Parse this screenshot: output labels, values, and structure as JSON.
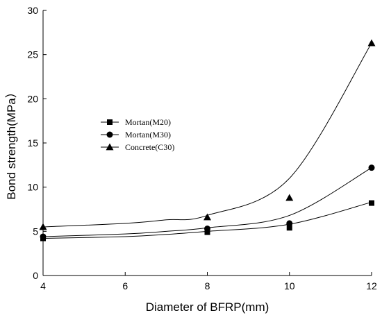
{
  "chart_data": {
    "type": "scatter",
    "xlabel": "Diameter of BFRP(mm)",
    "ylabel": "Bond strength(MPa）",
    "xlim": [
      4,
      12
    ],
    "ylim": [
      0,
      30
    ],
    "xticks": [
      4,
      6,
      8,
      10,
      12
    ],
    "yticks": [
      0,
      5,
      10,
      15,
      20,
      25,
      30
    ],
    "grid": false,
    "legend_position": "left-middle",
    "series": [
      {
        "name": "Mortan(M20)",
        "marker": "square",
        "x": [
          4,
          8,
          10,
          12
        ],
        "y": [
          4.2,
          4.9,
          5.4,
          8.2
        ],
        "fit": [
          4.2,
          4.4,
          4.65,
          5.0,
          5.8,
          8.3
        ]
      },
      {
        "name": "Mortan(M30)",
        "marker": "circle",
        "x": [
          4,
          8,
          10,
          12
        ],
        "y": [
          4.4,
          5.3,
          5.9,
          12.2
        ],
        "fit": [
          4.4,
          4.7,
          5.0,
          5.4,
          6.8,
          12.2
        ]
      },
      {
        "name": "Concrete(C30)",
        "marker": "triangle",
        "x": [
          4,
          8,
          10,
          12
        ],
        "y": [
          5.5,
          6.6,
          8.8,
          26.3
        ],
        "fit": [
          5.5,
          5.9,
          6.3,
          6.8,
          11.0,
          26.3
        ]
      }
    ],
    "fit_x": [
      4,
      6,
      7,
      8,
      10,
      12
    ],
    "color": "#000000"
  }
}
